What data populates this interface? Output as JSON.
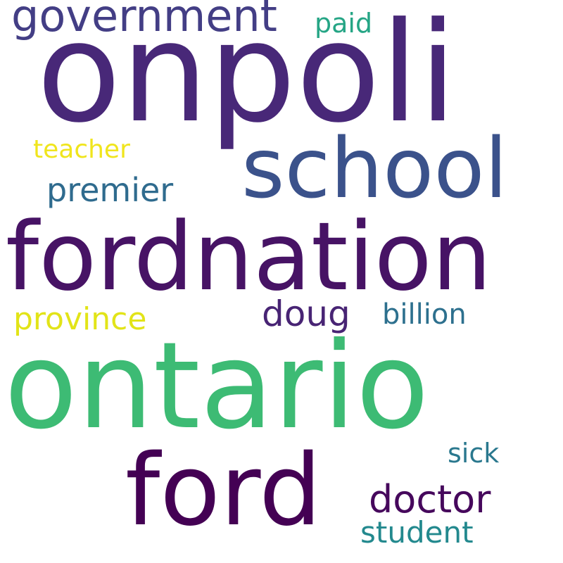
{
  "word_cloud": {
    "words": [
      {
        "id": "onpoli",
        "text": "onpoli",
        "color": "#482878"
      },
      {
        "id": "government",
        "text": "government",
        "color": "#433e85"
      },
      {
        "id": "paid",
        "text": "paid",
        "color": "#25a585"
      },
      {
        "id": "school",
        "text": "school",
        "color": "#3b528b"
      },
      {
        "id": "teacher",
        "text": "teacher",
        "color": "#f0e51d"
      },
      {
        "id": "premier",
        "text": "premier",
        "color": "#2f6b8e"
      },
      {
        "id": "fordnation",
        "text": "fordnation",
        "color": "#471365"
      },
      {
        "id": "doug",
        "text": "doug",
        "color": "#482474"
      },
      {
        "id": "billion",
        "text": "billion",
        "color": "#2d708e"
      },
      {
        "id": "province",
        "text": "province",
        "color": "#e2e418"
      },
      {
        "id": "ontario",
        "text": "ontario",
        "color": "#3dbb74"
      },
      {
        "id": "sick",
        "text": "sick",
        "color": "#2a788e"
      },
      {
        "id": "ford",
        "text": "ford",
        "color": "#440154"
      },
      {
        "id": "doctor",
        "text": "doctor",
        "color": "#46085c"
      },
      {
        "id": "student",
        "text": "student",
        "color": "#23898e"
      }
    ]
  }
}
